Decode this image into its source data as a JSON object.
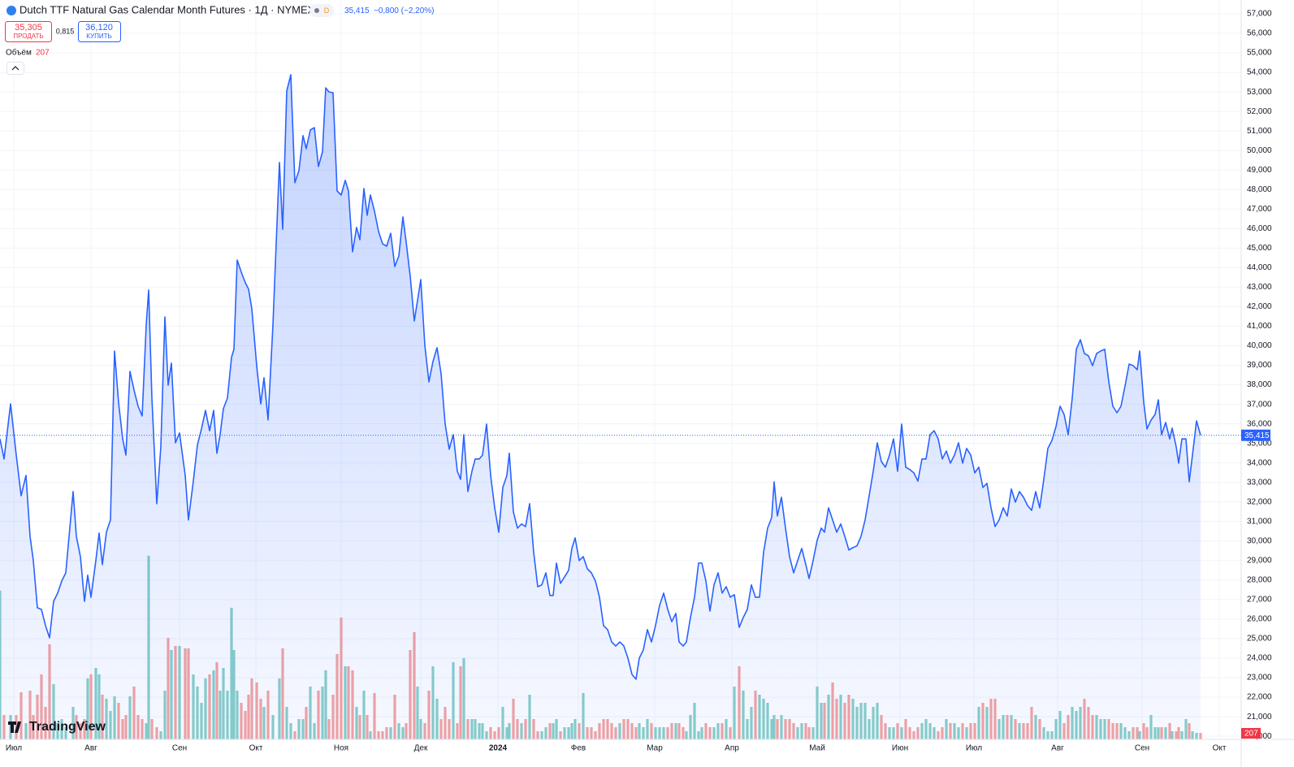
{
  "header": {
    "title": "Dutch TTF Natural Gas Calendar Month Futures · 1Д · NYMEX",
    "interval_badge": "D",
    "change": "−0,800 (−2,20%)",
    "sell_price": "35,305",
    "sell_label": "ПРОДАТЬ",
    "spread": "0,815",
    "buy_price": "36,120",
    "buy_label": "КУПИТЬ",
    "logo": "TradingView"
  },
  "chart_data": {
    "type": "line",
    "color": "#2962ff",
    "last_label": "35,415",
    "x": [
      0,
      1,
      2.6,
      4,
      5.2,
      6.4,
      7.4,
      8.2,
      9.2,
      10.2,
      11.2,
      12.2,
      13.2,
      14.2,
      15.2,
      16.2,
      18,
      18.8,
      19.8,
      20.8,
      21.6,
      22.4,
      23.6,
      24.4,
      25.2,
      26.2,
      27.2,
      28.2,
      29.2,
      30.2,
      31,
      32,
      33,
      34,
      35,
      36,
      36.6,
      37.4,
      38.6,
      39.6,
      40.6,
      41.4,
      42.2,
      43.2,
      44.2,
      45.6,
      46.4,
      47.6,
      48.6,
      49.6,
      50.6,
      51.6,
      52.6,
      53.4,
      54.2,
      55,
      56,
      57,
      57.6,
      58.4,
      59.4,
      60.4,
      61.2,
      62,
      63.2,
      64.2,
      65,
      66,
      67.2,
      68.8,
      69.6,
      70.6,
      71.6,
      72.6,
      73.6,
      74.6,
      75.4,
      76.4,
      77.4,
      78.4,
      79.4,
      80.2,
      81,
      82,
      83,
      84,
      85,
      85.8,
      86.8,
      87.8,
      88.6,
      89.6,
      90.4,
      91.2,
      92.2,
      93.2,
      94.2,
      95.2,
      96.2,
      97.2,
      98.2,
      99.2,
      100,
      101,
      102,
      102.8,
      103.6,
      104.6,
      105.6,
      106.6,
      107.6,
      108.6,
      109.6,
      110.6,
      111.6,
      112.6,
      113.4,
      114.2,
      115.2,
      116.2,
      117,
      118,
      118.8,
      119.8,
      120.8,
      121.8,
      122.8,
      123.8,
      124.8,
      125.4,
      126.4,
      127.4,
      128.4,
      129.4,
      130.4,
      131.4,
      132.4,
      133.4,
      134.4,
      135.4,
      136.2,
      137,
      138,
      139,
      140,
      140.8,
      141.6,
      142.6,
      143.6,
      144.6,
      145.6,
      146.6,
      147.6,
      148.6,
      149.6,
      150.6,
      151.6,
      152.6,
      153.6,
      154.6,
      155.6,
      156.6,
      157.4,
      158.4,
      159.4,
      160.4,
      161.4,
      162.4,
      163.4,
      164.4,
      165.4,
      166.4,
      167.2,
      168.2,
      169,
      170,
      171,
      172,
      172.8,
      173.8,
      174.8,
      175.8,
      176.8,
      177.8,
      178.8,
      179.8,
      180.8,
      182,
      183,
      184,
      185,
      186,
      187,
      188,
      189,
      190,
      190.6,
      191.4,
      192.4,
      193.4,
      194.4,
      195.4,
      196.4,
      197.4,
      198.4,
      199.2,
      200.2,
      201.2,
      202.2,
      203,
      204,
      205,
      206,
      207,
      208,
      209,
      210,
      211,
      212,
      213,
      214,
      215,
      216,
      217,
      218,
      219,
      220,
      221,
      222,
      223,
      224,
      225,
      226,
      227,
      228,
      229,
      230,
      231,
      232,
      233,
      234,
      235,
      236,
      237,
      238,
      239,
      240,
      241,
      242,
      243,
      244,
      245,
      246,
      247,
      248,
      249,
      250,
      251,
      252,
      253,
      254,
      255,
      256,
      257,
      258,
      259,
      260,
      261,
      262,
      263,
      264,
      265,
      266,
      267,
      268,
      269,
      270,
      271,
      272,
      273,
      274,
      275,
      276,
      277,
      278,
      279,
      280,
      280.6,
      281.6,
      282.4,
      283.4,
      284.4,
      285.2,
      286,
      287,
      288,
      288.6,
      289.6,
      290.2,
      291,
      292,
      292.8,
      293.6,
      294.6,
      295.6
    ],
    "values": [
      35.23,
      34.2,
      37.02,
      34.4,
      32.32,
      33.36,
      30.24,
      29.0,
      26.58,
      26.5,
      25.67,
      25.04,
      26.91,
      27.33,
      27.95,
      28.37,
      32.53,
      30.24,
      29.2,
      26.91,
      28.25,
      27.12,
      29.0,
      30.41,
      28.79,
      30.45,
      31.08,
      39.73,
      37.07,
      35.23,
      34.4,
      38.69,
      37.73,
      36.9,
      36.4,
      41.06,
      42.85,
      37.32,
      31.91,
      34.82,
      41.48,
      37.98,
      39.11,
      35.03,
      35.53,
      33.36,
      31.08,
      33.07,
      34.91,
      35.74,
      36.69,
      35.65,
      36.69,
      34.49,
      35.45,
      36.78,
      37.32,
      39.4,
      39.82,
      44.39,
      43.77,
      43.23,
      42.9,
      41.9,
      38.98,
      37.02,
      38.36,
      36.2,
      41.06,
      49.39,
      45.97,
      53.05,
      53.88,
      48.35,
      48.97,
      50.76,
      50.09,
      51.05,
      51.17,
      49.18,
      49.93,
      53.21,
      53.0,
      52.96,
      47.93,
      47.72,
      48.47,
      47.93,
      44.81,
      46.06,
      45.43,
      48.05,
      46.68,
      47.72,
      46.89,
      45.85,
      45.22,
      45.1,
      45.76,
      44.06,
      44.6,
      46.6,
      45.31,
      43.56,
      41.27,
      42.31,
      43.39,
      40.02,
      38.15,
      39.19,
      39.9,
      38.57,
      35.99,
      34.7,
      35.45,
      33.57,
      33.16,
      35.45,
      32.53,
      33.57,
      34.2,
      34.2,
      34.4,
      35.99,
      33.36,
      31.7,
      30.45,
      32.74,
      33.36,
      34.49,
      31.49,
      30.66,
      30.87,
      30.74,
      31.91,
      29.41,
      27.66,
      27.75,
      28.37,
      27.21,
      27.21,
      28.87,
      27.83,
      28.16,
      28.5,
      29.62,
      30.16,
      29.0,
      29.2,
      28.58,
      28.37,
      27.95,
      27.12,
      25.67,
      25.46,
      24.83,
      24.62,
      24.83,
      24.62,
      24.0,
      23.17,
      22.92,
      24.0,
      24.42,
      25.46,
      24.83,
      25.67,
      26.7,
      27.33,
      26.5,
      25.87,
      26.29,
      24.83,
      24.62,
      24.83,
      26.08,
      27.12,
      28.87,
      28.87,
      27.95,
      26.41,
      27.75,
      28.37,
      27.33,
      27.66,
      27.12,
      27.25,
      25.58,
      26.08,
      26.5,
      27.75,
      27.12,
      27.12,
      29.41,
      30.66,
      31.2,
      33.03,
      31.28,
      32.24,
      30.66,
      29.2,
      28.37,
      29.0,
      29.62,
      28.79,
      28.08,
      29.0,
      30.04,
      30.66,
      30.45,
      31.7,
      31.08,
      30.45,
      30.87,
      30.24,
      29.54,
      29.66,
      29.75,
      30.24,
      31.08,
      32.32,
      33.57,
      35.03,
      34.07,
      33.78,
      34.4,
      35.23,
      33.57,
      35.99,
      33.78,
      33.66,
      33.49,
      33.07,
      34.2,
      34.2,
      35.45,
      35.65,
      35.23,
      34.2,
      34.61,
      33.99,
      34.4,
      35.03,
      33.99,
      34.74,
      34.4,
      33.49,
      33.78,
      32.74,
      32.95,
      31.7,
      30.74,
      31.08,
      31.7,
      31.28,
      32.66,
      31.99,
      32.53,
      32.24,
      31.82,
      31.57,
      32.53,
      31.7,
      33.16,
      34.74,
      35.15,
      35.86,
      36.9,
      36.48,
      35.45,
      37.32,
      39.82,
      40.31,
      39.6,
      39.48,
      38.98,
      39.6,
      39.73,
      39.82,
      38.15,
      36.9,
      36.57,
      36.9,
      37.94,
      39.06,
      38.98,
      38.77,
      39.73,
      37.11,
      35.74,
      36.19,
      36.48,
      37.23,
      35.45,
      36.07,
      35.23,
      35.78,
      34.82,
      33.99,
      35.23,
      35.23,
      33.03,
      34.4,
      36.15,
      35.415
    ],
    "volume": {
      "name": "Объём",
      "last_label": "207",
      "up_color": "#89cfc8",
      "down_color": "#f5a3a1",
      "ylim": [
        0,
        7020
      ],
      "values": [
        4758,
        780,
        780,
        780,
        1508,
        520,
        1560,
        780,
        1430,
        2080,
        1040,
        3042,
        1768,
        520,
        650,
        390,
        1040,
        780,
        520,
        650,
        1950,
        2080,
        2288,
        2080,
        1430,
        1300,
        910,
        1378,
        1170,
        650,
        780,
        1378,
        1690,
        780,
        650,
        520,
        5876,
        650,
        390,
        260,
        1560,
        3250,
        2860,
        2990,
        2990,
        2912,
        2912,
        2080,
        1690,
        1170,
        1950,
        2080,
        2210,
        2470,
        1560,
        2288,
        1560,
        4212,
        2860,
        1560,
        1170,
        910,
        1430,
        1950,
        1820,
        1300,
        1040,
        1560,
        780,
        1950,
        2912,
        1040,
        520,
        260,
        650,
        650,
        1040,
        1690,
        520,
        1560,
        1690,
        2210,
        650,
        1430,
        2730,
        3900,
        2340,
        2340,
        2210,
        1040,
        780,
        1560,
        780,
        260,
        1482,
        260,
        260,
        390,
        390,
        1430,
        520,
        390,
        520,
        2860,
        3432,
        1690,
        650,
        520,
        1560,
        2340,
        1300,
        650,
        1040,
        650,
        2470,
        520,
        2340,
        2600,
        650,
        650,
        650,
        520,
        520,
        260,
        390,
        260,
        390,
        1040,
        390,
        520,
        1300,
        650,
        520,
        650,
        1430,
        650,
        260,
        260,
        390,
        520,
        520,
        650,
        260,
        390,
        390,
        520,
        650,
        520,
        1482,
        390,
        390,
        260,
        520,
        650,
        650,
        520,
        390,
        520,
        650,
        650,
        520,
        390,
        520,
        390,
        650,
        520,
        390,
        390,
        390,
        390,
        520,
        520,
        520,
        390,
        260,
        780,
        1170,
        260,
        390,
        520,
        390,
        390,
        520,
        520,
        650,
        390,
        1690,
        2340,
        1560,
        650,
        1040,
        1560,
        1430,
        1300,
        1170,
        650,
        780,
        650,
        780,
        650,
        650,
        520,
        390,
        520,
        520,
        390,
        390,
        1690,
        1170,
        1170,
        1430,
        1820,
        1300,
        1430,
        1170,
        1430,
        1300,
        1040,
        1170,
        1170,
        650,
        1040,
        1170,
        780,
        520,
        390,
        390,
        520,
        390,
        650,
        390,
        260,
        390,
        520,
        650,
        520,
        390,
        260,
        390,
        650,
        520,
        520,
        390,
        520,
        390,
        520,
        520,
        1040,
        1170,
        1040,
        1300,
        1300,
        650,
        780,
        780,
        780,
        650,
        520,
        520,
        520,
        1040,
        780,
        650,
        390,
        260,
        260,
        650,
        910,
        520,
        780,
        1040,
        910,
        1040,
        1300,
        1040,
        780,
        780,
        650,
        650,
        650,
        520,
        520,
        520,
        390,
        260,
        390,
        390,
        260,
        520,
        390,
        780,
        390,
        390,
        390,
        390,
        520,
        260,
        260,
        390,
        260,
        650,
        520,
        260,
        208,
        207
      ]
    },
    "xlim": [
      0,
      305.6
    ],
    "xticks": [
      {
        "value": 3.4,
        "label": "Июл"
      },
      {
        "value": 22.4,
        "label": "Авг"
      },
      {
        "value": 44.2,
        "label": "Сен"
      },
      {
        "value": 63,
        "label": "Окт"
      },
      {
        "value": 84,
        "label": "Ноя"
      },
      {
        "value": 103.6,
        "label": "Дек"
      },
      {
        "value": 122.6,
        "label": "2024"
      },
      {
        "value": 142.4,
        "label": "Фев"
      },
      {
        "value": 161.2,
        "label": "Мар"
      },
      {
        "value": 180.2,
        "label": "Апр"
      },
      {
        "value": 201.2,
        "label": "Май"
      },
      {
        "value": 221.6,
        "label": "Июн"
      },
      {
        "value": 239.8,
        "label": "Июл"
      },
      {
        "value": 260.4,
        "label": "Авг"
      },
      {
        "value": 281.2,
        "label": "Сен"
      },
      {
        "value": 300.2,
        "label": "Окт"
      }
    ],
    "ylim": [
      19.84,
      57.707
    ],
    "yticks": [
      {
        "value": 20,
        "label": "20,000"
      },
      {
        "value": 21,
        "label": "21,000"
      },
      {
        "value": 22,
        "label": "22,000"
      },
      {
        "value": 23,
        "label": "23,000"
      },
      {
        "value": 24,
        "label": "24,000"
      },
      {
        "value": 25,
        "label": "25,000"
      },
      {
        "value": 26,
        "label": "26,000"
      },
      {
        "value": 27,
        "label": "27,000"
      },
      {
        "value": 28,
        "label": "28,000"
      },
      {
        "value": 29,
        "label": "29,000"
      },
      {
        "value": 30,
        "label": "30,000"
      },
      {
        "value": 31,
        "label": "31,000"
      },
      {
        "value": 32,
        "label": "32,000"
      },
      {
        "value": 33,
        "label": "33,000"
      },
      {
        "value": 34,
        "label": "34,000"
      },
      {
        "value": 35,
        "label": "35,000"
      },
      {
        "value": 36,
        "label": "36,000"
      },
      {
        "value": 37,
        "label": "37,000"
      },
      {
        "value": 38,
        "label": "38,000"
      },
      {
        "value": 39,
        "label": "39,000"
      },
      {
        "value": 40,
        "label": "40,000"
      },
      {
        "value": 41,
        "label": "41,000"
      },
      {
        "value": 42,
        "label": "42,000"
      },
      {
        "value": 43,
        "label": "43,000"
      },
      {
        "value": 44,
        "label": "44,000"
      },
      {
        "value": 45,
        "label": "45,000"
      },
      {
        "value": 46,
        "label": "46,000"
      },
      {
        "value": 47,
        "label": "47,000"
      },
      {
        "value": 48,
        "label": "48,000"
      },
      {
        "value": 49,
        "label": "49,000"
      },
      {
        "value": 50,
        "label": "50,000"
      },
      {
        "value": 51,
        "label": "51,000"
      },
      {
        "value": 52,
        "label": "52,000"
      },
      {
        "value": 53,
        "label": "53,000"
      },
      {
        "value": 54,
        "label": "54,000"
      },
      {
        "value": 55,
        "label": "55,000"
      },
      {
        "value": 56,
        "label": "56,000"
      },
      {
        "value": 57,
        "label": "57,000"
      }
    ],
    "grid": true
  }
}
